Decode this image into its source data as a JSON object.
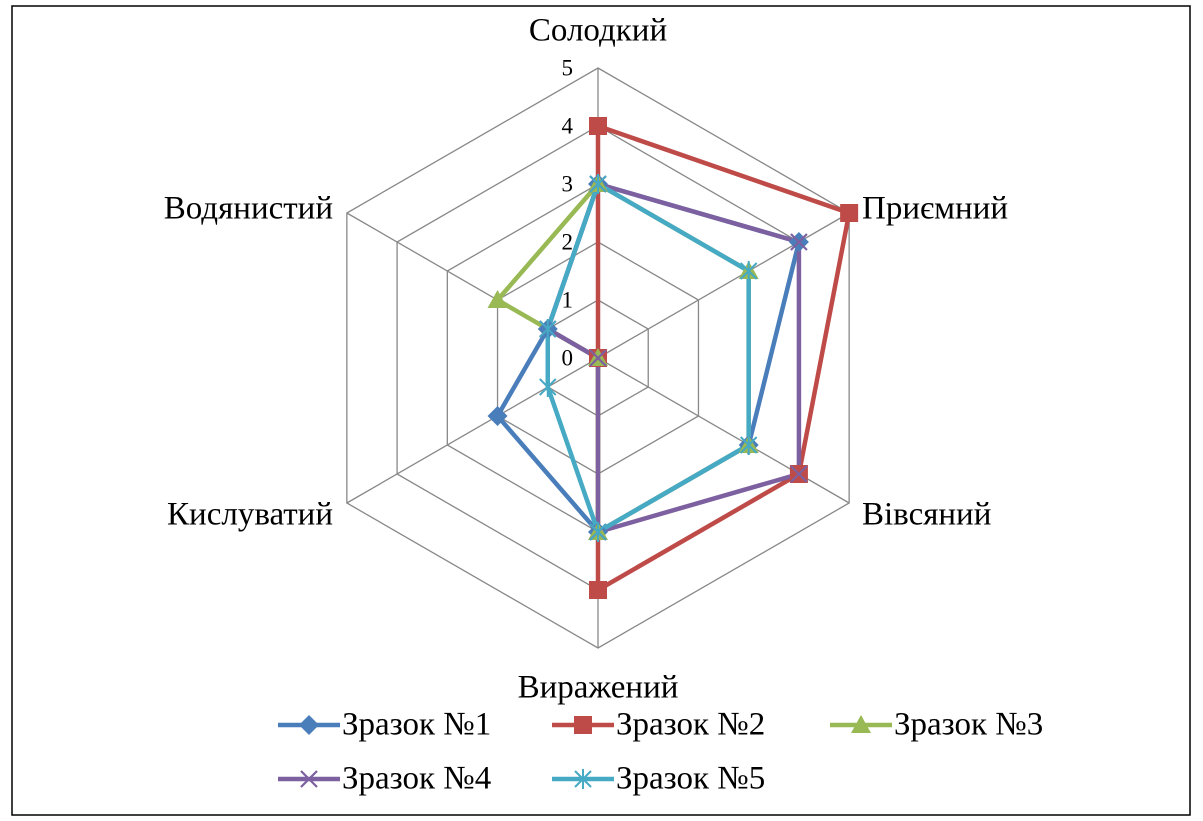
{
  "chart_data": {
    "type": "radar",
    "categories": [
      "Солодкий",
      "Приємний",
      "Вівсяний",
      "Виражений",
      "Кислуватий",
      "Водянистий"
    ],
    "ylim": [
      0,
      5
    ],
    "yticks": [
      0,
      1,
      2,
      3,
      4,
      5
    ],
    "grid": true,
    "series": [
      {
        "name": "Зразок №1",
        "color": "#4a7ebb",
        "marker": "diamond",
        "values": [
          3,
          4,
          3,
          3,
          2,
          1
        ]
      },
      {
        "name": "Зразок №2",
        "color": "#be4b48",
        "marker": "square",
        "values": [
          4,
          5,
          4,
          4,
          0,
          0
        ]
      },
      {
        "name": "Зразок №3",
        "color": "#98b954",
        "marker": "triangle",
        "values": [
          3,
          3,
          3,
          3,
          0,
          2
        ]
      },
      {
        "name": "Зразок №4",
        "color": "#7d60a0",
        "marker": "x",
        "values": [
          3,
          4,
          4,
          3,
          0,
          1
        ]
      },
      {
        "name": "Зразок №5",
        "color": "#46aac5",
        "marker": "star",
        "values": [
          3,
          3,
          3,
          3,
          1,
          1
        ]
      }
    ]
  }
}
